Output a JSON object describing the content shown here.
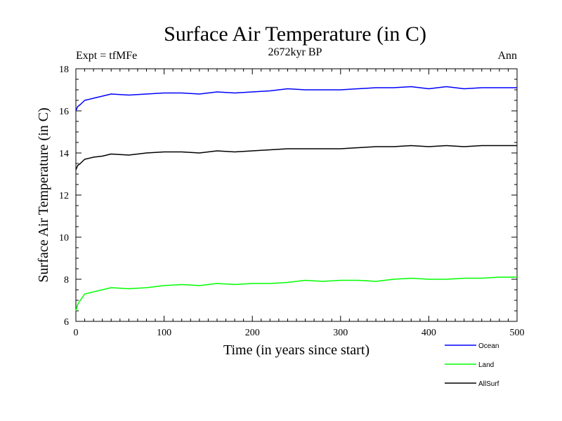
{
  "header": {
    "title": "Surface Air Temperature (in C)",
    "subtitle": "2672kyr BP",
    "left_label": "Expt = tfMFe",
    "right_label": "Ann"
  },
  "chart_data": {
    "type": "line",
    "title": "Surface Air Temperature (in C)",
    "xlabel": "Time (in years since start)",
    "ylabel": "Surface Air Temperature (in C)",
    "xlim": [
      0,
      500
    ],
    "ylim": [
      6,
      18
    ],
    "x_ticks": [
      0,
      100,
      200,
      300,
      400,
      500
    ],
    "y_ticks": [
      6,
      8,
      10,
      12,
      14,
      16,
      18
    ],
    "grid": false,
    "legend_position": "bottom-right, outside plot",
    "series": [
      {
        "name": "Ocean",
        "color": "#0000ff",
        "x": [
          0,
          2,
          5,
          10,
          20,
          30,
          40,
          60,
          80,
          100,
          120,
          140,
          160,
          180,
          200,
          220,
          240,
          260,
          280,
          300,
          320,
          340,
          360,
          380,
          400,
          420,
          440,
          460,
          480,
          500
        ],
        "values": [
          16.0,
          16.2,
          16.3,
          16.5,
          16.6,
          16.7,
          16.8,
          16.75,
          16.8,
          16.85,
          16.85,
          16.8,
          16.9,
          16.85,
          16.9,
          16.95,
          17.05,
          17.0,
          17.0,
          17.0,
          17.05,
          17.1,
          17.1,
          17.15,
          17.05,
          17.15,
          17.05,
          17.1,
          17.1,
          17.1
        ]
      },
      {
        "name": "Land",
        "color": "#00ff00",
        "x": [
          0,
          2,
          5,
          10,
          20,
          30,
          40,
          60,
          80,
          100,
          120,
          140,
          160,
          180,
          200,
          220,
          240,
          260,
          280,
          300,
          320,
          340,
          360,
          380,
          400,
          420,
          440,
          460,
          480,
          500
        ],
        "values": [
          6.5,
          6.8,
          7.0,
          7.3,
          7.4,
          7.5,
          7.6,
          7.55,
          7.6,
          7.7,
          7.75,
          7.7,
          7.8,
          7.75,
          7.8,
          7.8,
          7.85,
          7.95,
          7.9,
          7.95,
          7.95,
          7.9,
          8.0,
          8.05,
          8.0,
          8.0,
          8.05,
          8.05,
          8.1,
          8.1
        ]
      },
      {
        "name": "AllSurf",
        "color": "#000000",
        "x": [
          0,
          2,
          5,
          10,
          20,
          30,
          40,
          60,
          80,
          100,
          120,
          140,
          160,
          180,
          200,
          220,
          240,
          260,
          280,
          300,
          320,
          340,
          360,
          380,
          400,
          420,
          440,
          460,
          480,
          500
        ],
        "values": [
          13.2,
          13.4,
          13.5,
          13.7,
          13.8,
          13.85,
          13.95,
          13.9,
          14.0,
          14.05,
          14.05,
          14.0,
          14.1,
          14.05,
          14.1,
          14.15,
          14.2,
          14.2,
          14.2,
          14.2,
          14.25,
          14.3,
          14.3,
          14.35,
          14.3,
          14.35,
          14.3,
          14.35,
          14.35,
          14.35
        ]
      }
    ]
  }
}
